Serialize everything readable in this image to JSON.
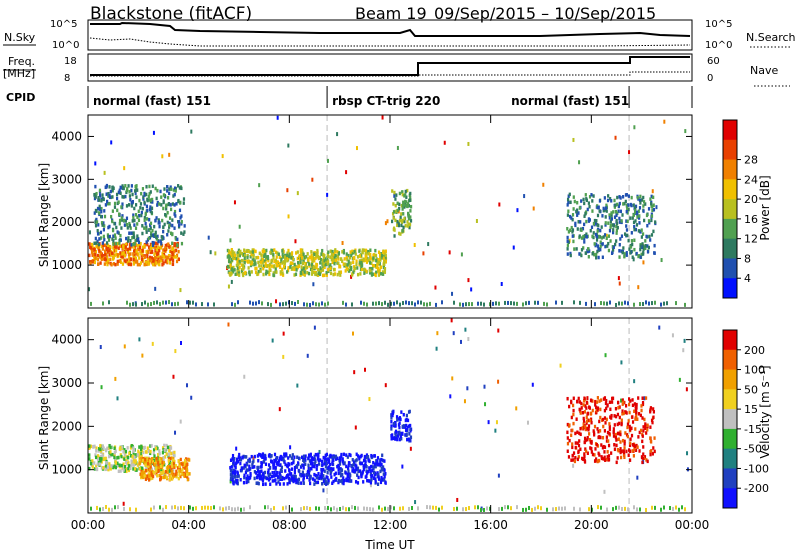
{
  "header": {
    "title": "Blackstone (fitACF)",
    "beam": "Beam 19",
    "daterange": "09/Sep/2015 – 10/Sep/2015"
  },
  "top_panels": {
    "nsky_label": "N.Sky",
    "nsky_ticks": [
      "10^5",
      "10^0"
    ],
    "nsearch_label": "N.Search",
    "nsearch_ticks": [
      "10^5",
      "10^0"
    ],
    "freq_label": "Freq.",
    "freq_unit": "[MHz]",
    "freq_ticks": [
      "18",
      "8"
    ],
    "nave_label": "Nave",
    "nave_ticks": [
      "60",
      "0"
    ],
    "cpid_label": "CPID",
    "cpid_segments": [
      {
        "label": "normal (fast) 151",
        "start_h": 0,
        "end_h": 9.5
      },
      {
        "label": "rbsp CT-trig 220",
        "start_h": 9.5,
        "end_h": 21.5
      },
      {
        "label": "normal (fast) 151",
        "start_h": 21.5,
        "end_h": 24
      }
    ]
  },
  "chart_data": [
    {
      "type": "heatmap",
      "panel": "power",
      "xlabel": "",
      "ylabel": "Slant Range [km]",
      "xlim": [
        0,
        24
      ],
      "ylim": [
        0,
        4500
      ],
      "y_ticks": [
        "1000",
        "2000",
        "3000",
        "4000"
      ],
      "colorbar_label": "Power [dB]",
      "colorbar_ticks": [
        "4",
        "8",
        "12",
        "16",
        "20",
        "24",
        "28"
      ],
      "colorbar_colors": [
        "#0010ff",
        "#2050b0",
        "#2e7a60",
        "#50a050",
        "#b8c020",
        "#f0c000",
        "#f08000",
        "#e84000",
        "#e00000"
      ],
      "regions": [
        {
          "t0": 0.0,
          "t1": 3.6,
          "r0": 1050,
          "r1": 1550,
          "level": 6
        },
        {
          "t0": 0.2,
          "t1": 3.8,
          "r0": 1500,
          "r1": 2900,
          "level": 2
        },
        {
          "t0": 5.5,
          "t1": 11.8,
          "r0": 800,
          "r1": 1400,
          "level": 4
        },
        {
          "t0": 12.0,
          "t1": 12.8,
          "r0": 1700,
          "r1": 2800,
          "level": 3
        },
        {
          "t0": 19.0,
          "t1": 22.5,
          "r0": 1200,
          "r1": 2700,
          "level": 2
        }
      ]
    },
    {
      "type": "heatmap",
      "panel": "velocity",
      "xlabel": "Time UT",
      "ylabel": "Slant Range [km]",
      "xlim": [
        0,
        24
      ],
      "ylim": [
        0,
        4500
      ],
      "y_ticks": [
        "1000",
        "2000",
        "3000",
        "4000"
      ],
      "x_ticks": [
        "00:00",
        "04:00",
        "08:00",
        "12:00",
        "16:00",
        "20:00",
        "00:00"
      ],
      "colorbar_label": "Velocity [m s⁻¹]",
      "colorbar_ticks": [
        "200",
        "100",
        "50",
        "15",
        "-15",
        "-50",
        "-100",
        "-200"
      ],
      "colorbar_colors": [
        "#1010ff",
        "#2040c0",
        "#208080",
        "#30b030",
        "#c0c0c0",
        "#f0d020",
        "#f0a000",
        "#f06000",
        "#e00000"
      ],
      "regions": [
        {
          "t0": 0.0,
          "t1": 3.4,
          "r0": 1000,
          "r1": 1600,
          "level": 4
        },
        {
          "t0": 2.0,
          "t1": 4.0,
          "r0": 800,
          "r1": 1300,
          "level": 6
        },
        {
          "t0": 5.6,
          "t1": 11.8,
          "r0": 700,
          "r1": 1400,
          "level": 0
        },
        {
          "t0": 12.0,
          "t1": 12.8,
          "r0": 1700,
          "r1": 2400,
          "level": 0
        },
        {
          "t0": 19.0,
          "t1": 22.5,
          "r0": 1200,
          "r1": 2700,
          "level": 8
        }
      ]
    }
  ]
}
